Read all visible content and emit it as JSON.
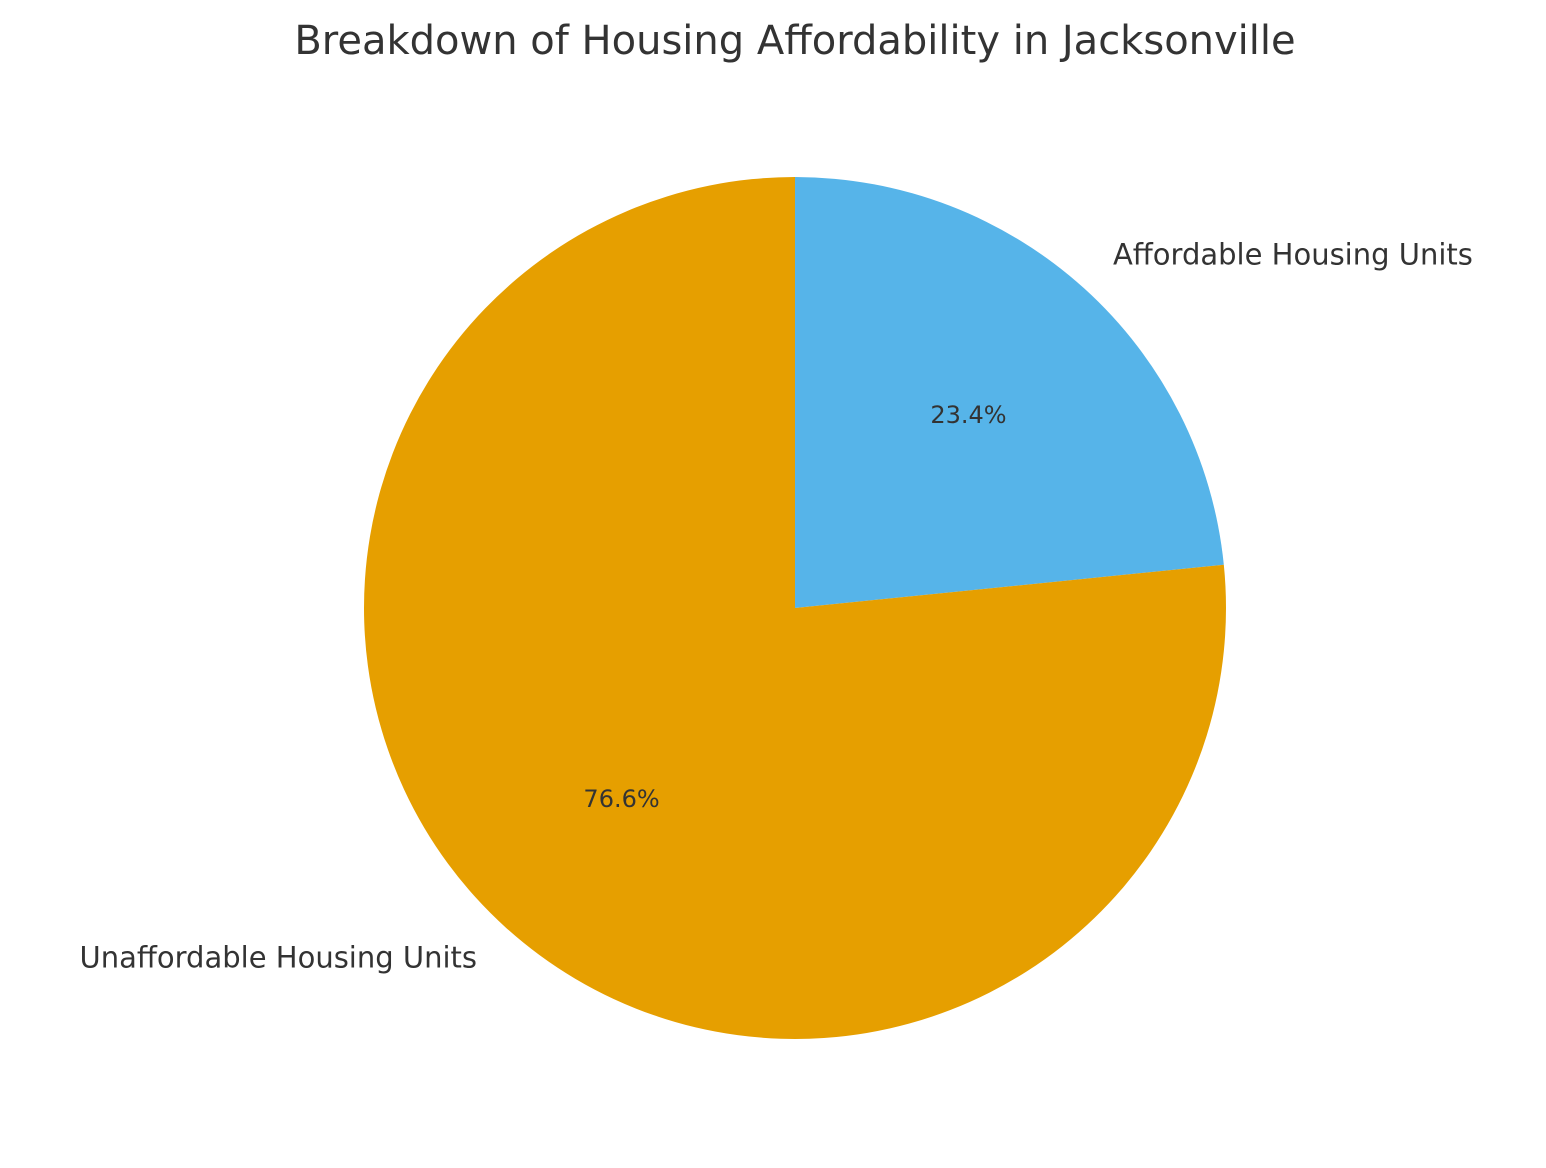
{
  "chart_data": {
    "type": "pie",
    "title": "Breakdown of Housing Affordability in Jacksonville",
    "labels": [
      "Affordable Housing Units",
      "Unaffordable Housing Units"
    ],
    "values": [
      23.4,
      76.6
    ],
    "value_labels": [
      "23.4%",
      "76.6%"
    ],
    "colors": [
      "#56B4E9",
      "#E69F00"
    ],
    "start_angle_deg": 90,
    "direction": "clockwise",
    "legend": "none"
  }
}
